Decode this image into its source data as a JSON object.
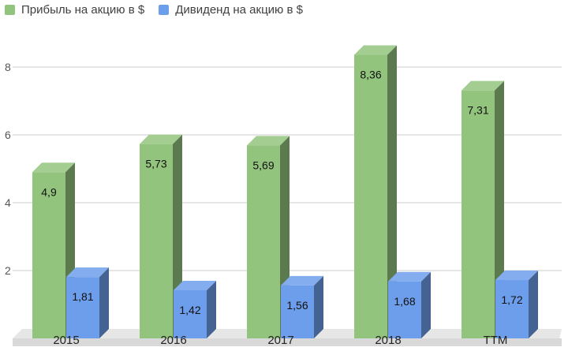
{
  "chart_data": {
    "type": "bar",
    "categories": [
      "2015",
      "2016",
      "2017",
      "2018",
      "TTM"
    ],
    "series": [
      {
        "name": "Прибыль на акцию в $",
        "values": [
          4.9,
          5.73,
          5.69,
          8.36,
          7.31
        ],
        "labels": [
          "4,9",
          "5,73",
          "5,69",
          "8,36",
          "7,31"
        ],
        "color": "#93c47d"
      },
      {
        "name": "Дивиденд на акцию в $",
        "values": [
          1.81,
          1.42,
          1.56,
          1.68,
          1.72
        ],
        "labels": [
          "1,81",
          "1,42",
          "1,56",
          "1,68",
          "1,72"
        ],
        "color": "#6d9eeb"
      }
    ],
    "y_ticks": [
      "2",
      "4",
      "6",
      "8"
    ],
    "ylim": [
      0,
      8.5
    ],
    "grid": true,
    "legend_position": "top-left",
    "style": "3d"
  }
}
